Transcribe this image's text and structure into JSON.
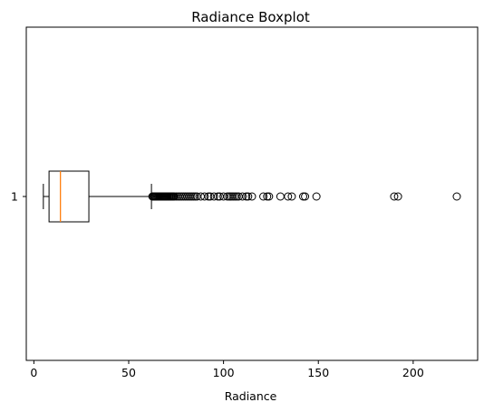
{
  "chart_data": {
    "type": "boxplot",
    "orientation": "horizontal",
    "title": "Radiance Boxplot",
    "xlabel": "Radiance",
    "ylabel": "",
    "xlim": [
      -4,
      234
    ],
    "xticks": [
      0,
      50,
      100,
      150,
      200
    ],
    "yticks": [
      "1"
    ],
    "grid": false,
    "colors": {
      "median": "#ff7f0e",
      "box": "#000000",
      "flier": "#000000"
    },
    "box": {
      "label": "1",
      "whisker_low": 5,
      "q1": 8,
      "median": 14,
      "q3": 29,
      "whisker_high": 62,
      "fliers": [
        62.5,
        63,
        63.5,
        64,
        64.5,
        65,
        65.5,
        66,
        66.5,
        67,
        67.5,
        68,
        68.5,
        69,
        69.5,
        70,
        70.5,
        71,
        71.5,
        72,
        72.5,
        73,
        73.5,
        74,
        75,
        76,
        77,
        78,
        79,
        80,
        81,
        82,
        83,
        84,
        85,
        86,
        88,
        90,
        92,
        93,
        95,
        97,
        98,
        100,
        102,
        103,
        104,
        105,
        106,
        107,
        108,
        110,
        112,
        113,
        115,
        121,
        123,
        124,
        130,
        134,
        136,
        142,
        143,
        149,
        190,
        192,
        223
      ]
    }
  }
}
